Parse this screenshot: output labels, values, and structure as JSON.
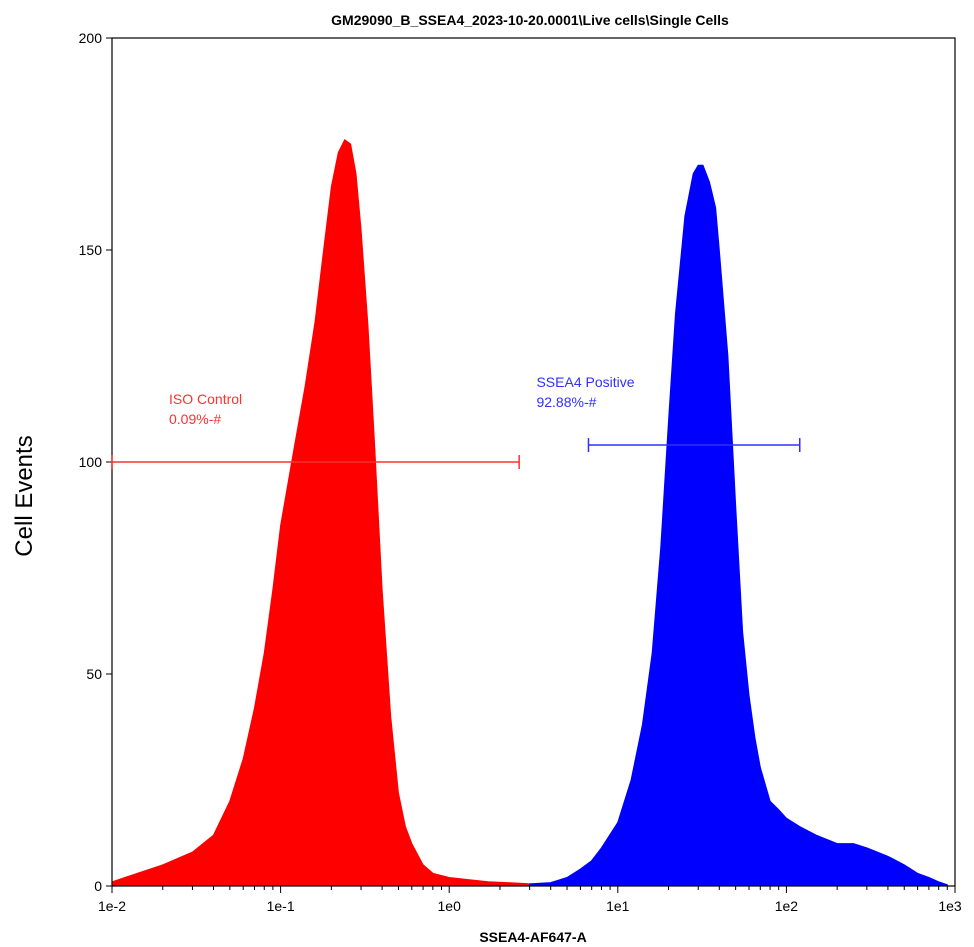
{
  "chart_data": {
    "type": "area",
    "title": "GM29090_B_SSEA4_2023-10-20.0001\\Live cells\\Single Cells",
    "xlabel": "SSEA4-AF647-A",
    "ylabel": "Cell Events",
    "xscale": "log",
    "xlim": [
      0.01,
      1000
    ],
    "ylim": [
      0,
      200
    ],
    "x_ticks": [
      {
        "value": 0.01,
        "label": "1e-2"
      },
      {
        "value": 0.1,
        "label": "1e-1"
      },
      {
        "value": 1,
        "label": "1e0"
      },
      {
        "value": 10,
        "label": "1e1"
      },
      {
        "value": 100,
        "label": "1e2"
      },
      {
        "value": 1000,
        "label": "1e3"
      }
    ],
    "y_ticks": [
      {
        "value": 0,
        "label": "0"
      },
      {
        "value": 50,
        "label": "50"
      },
      {
        "value": 100,
        "label": "100"
      },
      {
        "value": 150,
        "label": "150"
      },
      {
        "value": 200,
        "label": "200"
      }
    ],
    "grid": false,
    "series": [
      {
        "color": "#ff0000",
        "x": [
          0.01,
          0.02,
          0.03,
          0.04,
          0.05,
          0.06,
          0.07,
          0.08,
          0.09,
          0.1,
          0.12,
          0.14,
          0.16,
          0.18,
          0.2,
          0.22,
          0.24,
          0.26,
          0.28,
          0.3,
          0.33,
          0.36,
          0.4,
          0.45,
          0.5,
          0.55,
          0.6,
          0.7,
          0.8,
          1.0,
          1.3,
          1.7,
          2.2,
          2.8,
          3.5
        ],
        "values": [
          1,
          5,
          8,
          12,
          20,
          30,
          42,
          55,
          70,
          85,
          103,
          118,
          133,
          150,
          165,
          173,
          176,
          175,
          168,
          155,
          132,
          105,
          70,
          40,
          22,
          14,
          10,
          5,
          3,
          2,
          1.5,
          1,
          0.8,
          0.6,
          0.3
        ]
      },
      {
        "color": "#0000ff",
        "x": [
          3.0,
          4.0,
          5.0,
          6.0,
          7.0,
          8.0,
          10,
          12,
          14,
          16,
          18,
          20,
          22,
          25,
          28,
          30,
          32,
          35,
          38,
          40,
          45,
          50,
          55,
          60,
          65,
          70,
          80,
          90,
          100,
          120,
          150,
          200,
          250,
          300,
          400,
          500,
          600,
          700,
          800,
          900
        ],
        "values": [
          0.5,
          0.8,
          2,
          4,
          6,
          9,
          15,
          25,
          38,
          55,
          80,
          110,
          135,
          158,
          168,
          170,
          170,
          166,
          160,
          150,
          125,
          90,
          60,
          45,
          35,
          28,
          20,
          18,
          16,
          14,
          12,
          10,
          10,
          9,
          7,
          5,
          3,
          2,
          1,
          0.3
        ]
      }
    ],
    "annotations": [
      {
        "label": "ISO Control",
        "value": "0.09%-#",
        "color": "#ff3030",
        "gate_x": [
          0.01,
          2.6
        ],
        "gate_y": 100
      },
      {
        "label": "SSEA4 Positive",
        "value": "92.88%-#",
        "color": "#3030ff",
        "gate_x": [
          6.7,
          120
        ],
        "gate_y": 104
      }
    ]
  }
}
